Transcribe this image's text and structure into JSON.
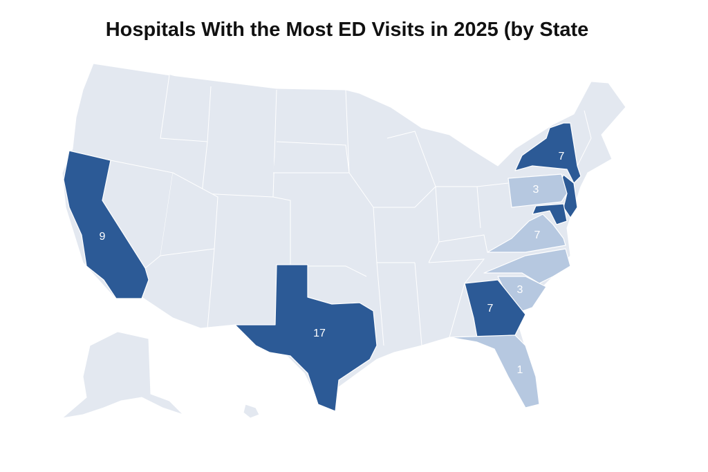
{
  "map": {
    "type": "choropleth",
    "title": "Hospitals With the Most ED Visits in 2025 (by State",
    "base_color": "#e3e8f0",
    "regions": [
      {
        "value": 9,
        "color": "#2c5a96"
      },
      {
        "value": 17,
        "color": "#2c5a96"
      },
      {
        "value": 7,
        "color": "#2c5a96"
      },
      {
        "color": "#2c5a96"
      },
      {
        "value": 3,
        "color": "#b6c8e0"
      },
      {
        "color": "#2c5a96"
      },
      {
        "value": 7,
        "color": "#b6c8e0"
      },
      {
        "color": "#b6c8e0"
      },
      {
        "value": 3,
        "color": "#b6c8e0"
      },
      {
        "value": 7,
        "color": "#2c5a96"
      },
      {
        "value": 1,
        "color": "#b6c8e0"
      }
    ]
  }
}
